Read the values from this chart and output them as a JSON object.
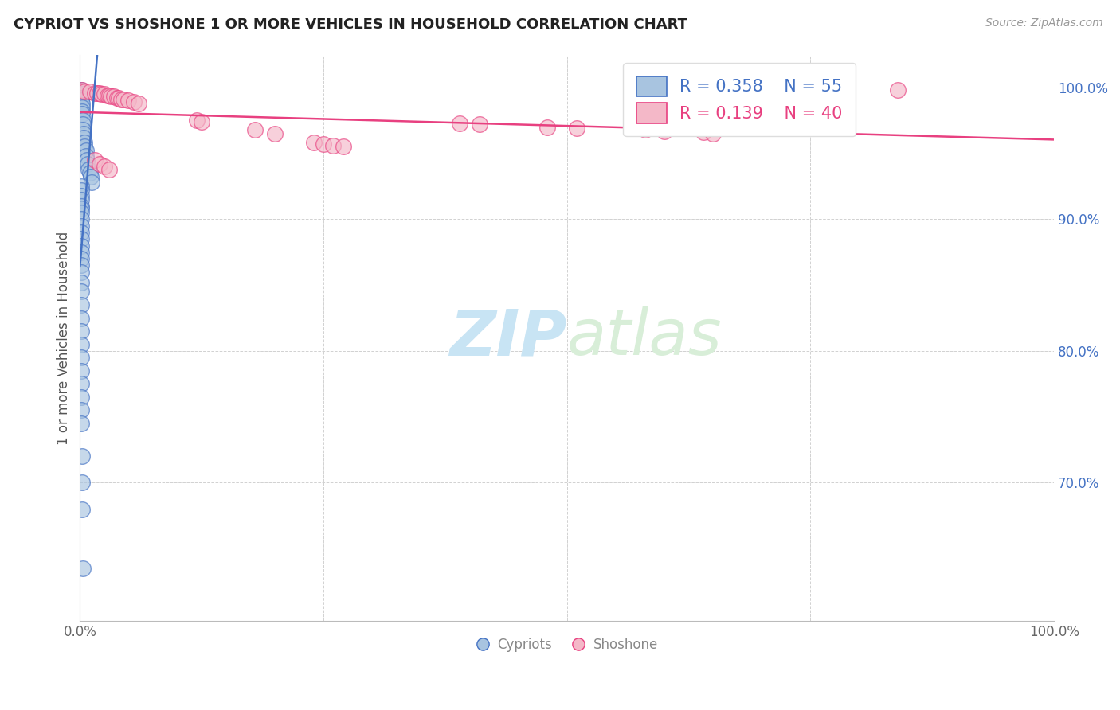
{
  "title": "CYPRIOT VS SHOSHONE 1 OR MORE VEHICLES IN HOUSEHOLD CORRELATION CHART",
  "source_text": "Source: ZipAtlas.com",
  "ylabel": "1 or more Vehicles in Household",
  "xlabel": "",
  "legend_label1": "Cypriots",
  "legend_label2": "Shoshone",
  "R1": 0.358,
  "N1": 55,
  "R2": 0.139,
  "N2": 40,
  "xlim": [
    0.0,
    1.0
  ],
  "ylim": [
    0.595,
    1.025
  ],
  "yticks": [
    0.7,
    0.8,
    0.9,
    1.0
  ],
  "ytick_labels": [
    "70.0%",
    "80.0%",
    "90.0%",
    "100.0%"
  ],
  "xticks": [
    0.0,
    0.25,
    0.5,
    0.75,
    1.0
  ],
  "xtick_labels": [
    "0.0%",
    "",
    "",
    "",
    "100.0%"
  ],
  "color_blue": "#A8C4E0",
  "color_pink": "#F4B8C8",
  "line_blue": "#4472C4",
  "line_pink": "#E84080",
  "background_color": "#ffffff",
  "watermark_color": "#C8E4F4",
  "cypriot_x": [
    0.001,
    0.001,
    0.001,
    0.001,
    0.002,
    0.002,
    0.002,
    0.002,
    0.003,
    0.003,
    0.003,
    0.004,
    0.004,
    0.005,
    0.005,
    0.006,
    0.006,
    0.007,
    0.008,
    0.009,
    0.01,
    0.011,
    0.012,
    0.001,
    0.001,
    0.001,
    0.001,
    0.001,
    0.001,
    0.001,
    0.001,
    0.001,
    0.001,
    0.001,
    0.001,
    0.001,
    0.001,
    0.001,
    0.001,
    0.001,
    0.001,
    0.001,
    0.001,
    0.001,
    0.001,
    0.001,
    0.001,
    0.001,
    0.001,
    0.001,
    0.001,
    0.002,
    0.002,
    0.002,
    0.003
  ],
  "cypriot_y": [
    0.998,
    0.995,
    0.992,
    0.99,
    0.988,
    0.985,
    0.982,
    0.98,
    0.975,
    0.972,
    0.968,
    0.965,
    0.962,
    0.958,
    0.955,
    0.952,
    0.948,
    0.945,
    0.942,
    0.938,
    0.935,
    0.932,
    0.928,
    0.925,
    0.922,
    0.918,
    0.915,
    0.91,
    0.908,
    0.905,
    0.9,
    0.895,
    0.89,
    0.885,
    0.88,
    0.875,
    0.87,
    0.865,
    0.86,
    0.852,
    0.845,
    0.835,
    0.825,
    0.815,
    0.805,
    0.795,
    0.785,
    0.775,
    0.765,
    0.755,
    0.745,
    0.72,
    0.7,
    0.68,
    0.635
  ],
  "shoshone_x": [
    0.002,
    0.005,
    0.01,
    0.015,
    0.018,
    0.02,
    0.022,
    0.025,
    0.028,
    0.03,
    0.032,
    0.035,
    0.038,
    0.04,
    0.042,
    0.045,
    0.05,
    0.055,
    0.06,
    0.12,
    0.125,
    0.18,
    0.2,
    0.24,
    0.25,
    0.26,
    0.27,
    0.39,
    0.41,
    0.48,
    0.51,
    0.58,
    0.6,
    0.64,
    0.65,
    0.84,
    0.015,
    0.02,
    0.025,
    0.03
  ],
  "shoshone_y": [
    0.998,
    0.997,
    0.997,
    0.996,
    0.996,
    0.996,
    0.995,
    0.995,
    0.994,
    0.994,
    0.993,
    0.993,
    0.992,
    0.992,
    0.991,
    0.991,
    0.99,
    0.989,
    0.988,
    0.975,
    0.974,
    0.968,
    0.965,
    0.958,
    0.957,
    0.956,
    0.955,
    0.973,
    0.972,
    0.97,
    0.969,
    0.968,
    0.967,
    0.966,
    0.965,
    0.998,
    0.945,
    0.942,
    0.94,
    0.938
  ]
}
